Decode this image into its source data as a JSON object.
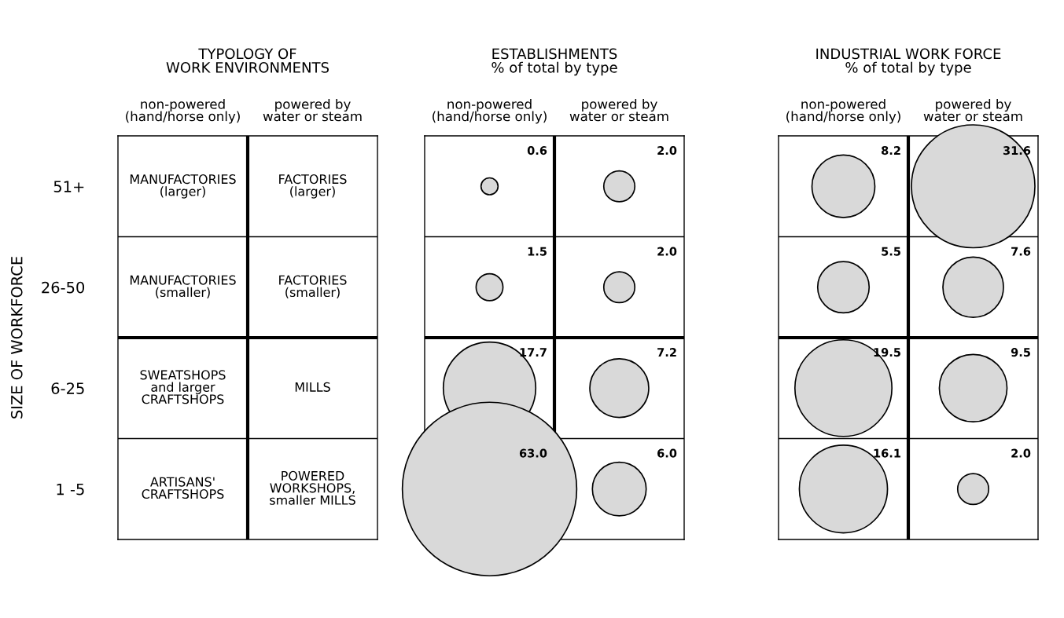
{
  "chart_data": [
    {
      "type": "other",
      "title": "TYPOLOGY OF\nWORK ENVIRONMENTS",
      "ylabel": "SIZE OF WORKFORCE",
      "categories": [
        "non-powered\n(hand/horse only)",
        "powered by\nwater or steam"
      ],
      "y_categories": [
        "51+",
        "26-50",
        "6-25",
        "1 -5"
      ],
      "cell_labels": [
        [
          "MANUFACTORIES\n(larger)",
          "FACTORIES\n(larger)"
        ],
        [
          "MANUFACTORIES\n(smaller)",
          "FACTORIES\n(smaller)"
        ],
        [
          "SWEATSHOPS\nand larger\nCRAFTSHOPS",
          "MILLS"
        ],
        [
          "ARTISANS'\nCRAFTSHOPS",
          "POWERED\nWORKSHOPS,\nsmaller MILLS"
        ]
      ]
    },
    {
      "type": "heatmap",
      "title": "ESTABLISHMENTS",
      "subtitle": "% of total by type",
      "categories": [
        "non-powered\n(hand/horse only)",
        "powered by\nwater or steam"
      ],
      "y_categories": [
        null,
        null,
        null,
        null
      ],
      "color": "#d9d9d9",
      "cells": [
        [
          0.6,
          2.0
        ],
        [
          1.5,
          2.0
        ],
        [
          17.7,
          7.2
        ],
        [
          63.0,
          6.0
        ]
      ],
      "cell_labels": [
        [
          "0.6",
          "2.0"
        ],
        [
          "1.5",
          "2.0"
        ],
        [
          "17.7",
          "7.2"
        ],
        [
          "63.0",
          "6.0"
        ]
      ]
    },
    {
      "type": "heatmap",
      "title": "INDUSTRIAL WORK FORCE",
      "subtitle": "% of total by type",
      "categories": [
        "non-powered\n(hand/horse only)",
        "powered by\nwater or steam"
      ],
      "y_categories": [
        null,
        null,
        null,
        null
      ],
      "color": "#d9d9d9",
      "cells": [
        [
          8.2,
          31.6
        ],
        [
          5.5,
          7.6
        ],
        [
          19.5,
          9.5
        ],
        [
          16.1,
          2.0
        ]
      ],
      "cell_labels": [
        [
          "8.2",
          "31.6"
        ],
        [
          "5.5",
          "7.6"
        ],
        [
          "19.5",
          "9.5"
        ],
        [
          "16.1",
          "2.0"
        ]
      ]
    }
  ]
}
